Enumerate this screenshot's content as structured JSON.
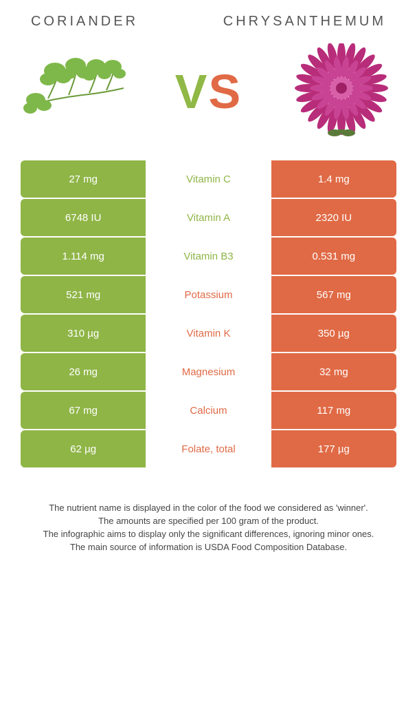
{
  "colors": {
    "left": "#8fb547",
    "right": "#e06a45",
    "left_winner_text": "#8fb547",
    "right_winner_text": "#e06a45"
  },
  "header": {
    "left": "CORIANDER",
    "right": "CHRYSANTHEMUM"
  },
  "vs": {
    "v": "V",
    "s": "S"
  },
  "rows": [
    {
      "left": "27 mg",
      "label": "Vitamin C",
      "right": "1.4 mg",
      "winner": "left"
    },
    {
      "left": "6748 IU",
      "label": "Vitamin A",
      "right": "2320 IU",
      "winner": "left"
    },
    {
      "left": "1.114 mg",
      "label": "Vitamin B3",
      "right": "0.531 mg",
      "winner": "left"
    },
    {
      "left": "521 mg",
      "label": "Potassium",
      "right": "567 mg",
      "winner": "right"
    },
    {
      "left": "310 µg",
      "label": "Vitamin K",
      "right": "350 µg",
      "winner": "right"
    },
    {
      "left": "26 mg",
      "label": "Magnesium",
      "right": "32 mg",
      "winner": "right"
    },
    {
      "left": "67 mg",
      "label": "Calcium",
      "right": "117 mg",
      "winner": "right"
    },
    {
      "left": "62 µg",
      "label": "Folate, total",
      "right": "177 µg",
      "winner": "right"
    }
  ],
  "footer": [
    "The nutrient name is displayed in the color of the food we considered as 'winner'.",
    "The amounts are specified per 100 gram of the product.",
    "The infographic aims to display only the significant differences, ignoring minor ones.",
    "The main source of information is USDA Food Composition Database."
  ]
}
